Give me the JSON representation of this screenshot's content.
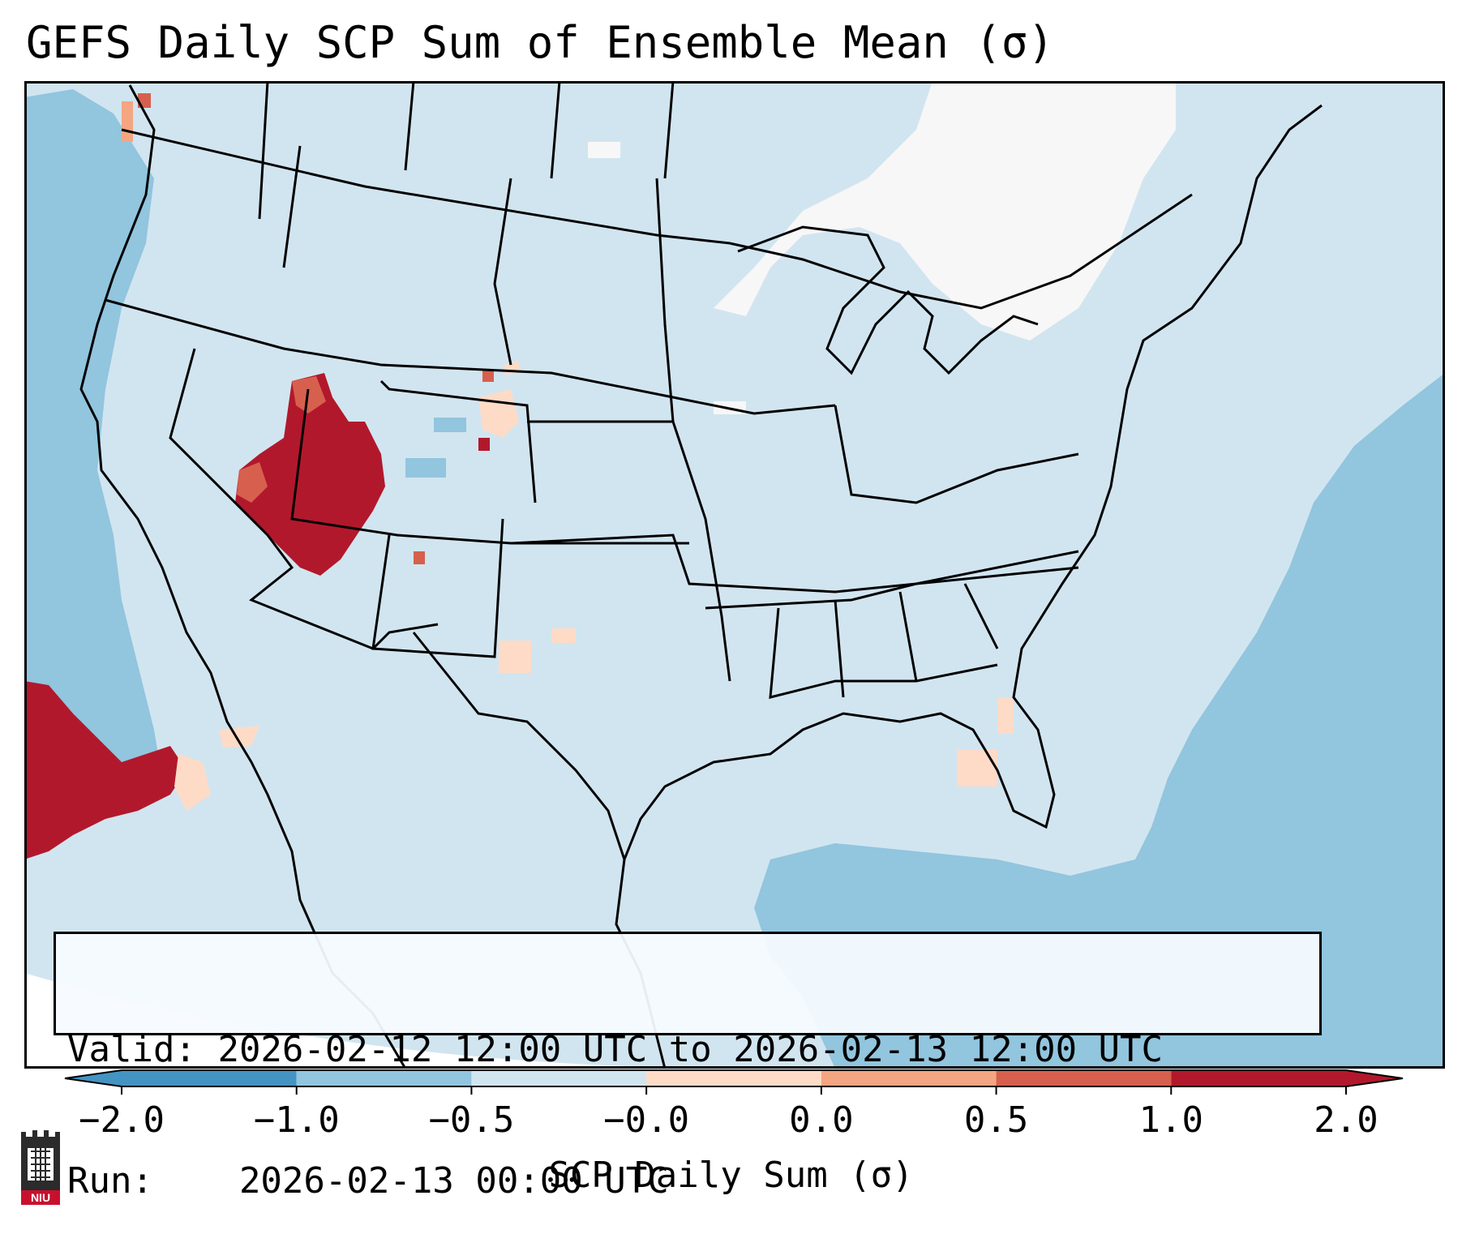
{
  "title": "GEFS Daily SCP Sum of Ensemble Mean (σ)",
  "info": {
    "valid_label": "Valid:",
    "valid_value": "2026-02-12 12:00 UTC to 2026-02-13 12:00 UTC",
    "run_label": "Run:",
    "run_value": "2026-02-13 00:00 UTC"
  },
  "colorbar": {
    "label": "SCP Daily Sum (σ)",
    "ticks": [
      "−2.0",
      "−1.0",
      "−0.5",
      "−0.0",
      "0.0",
      "0.5",
      "1.0",
      "2.0"
    ],
    "colors": [
      "#4393c3",
      "#92c5de",
      "#d1e5f0",
      "#f7f7f7",
      "#fddbc7",
      "#f4a582",
      "#d6604d",
      "#b2182b"
    ],
    "extend": "both"
  },
  "map": {
    "region": "Contiguous United States",
    "background_color": "#d1e5f0",
    "ocean_color": "#92c5de",
    "high_value_color": "#b2182b"
  },
  "logo": {
    "text": "NIU",
    "icon": "niu-logo-icon"
  }
}
